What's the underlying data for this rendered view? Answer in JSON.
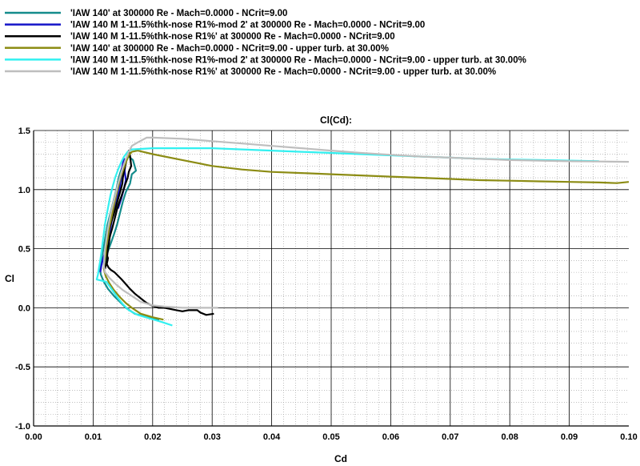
{
  "chart_data": {
    "type": "line",
    "title": "Cl(Cd):",
    "xlabel": "Cd",
    "ylabel": "Cl",
    "xlim": [
      0.0,
      0.1
    ],
    "ylim": [
      -1.0,
      1.5
    ],
    "xticks": [
      "0.00",
      "0.01",
      "0.02",
      "0.03",
      "0.04",
      "0.05",
      "0.06",
      "0.07",
      "0.08",
      "0.09",
      "0.10"
    ],
    "yticks": [
      "1.5",
      "1.0",
      "0.5",
      "0.0",
      "-0.5",
      "-1.0"
    ],
    "grid": true,
    "legend_position": "top-left",
    "series": [
      {
        "name": "'IAW 140' at 300000 Re - Mach=0.0000 - NCrit=9.00",
        "color": "#148c8c",
        "points": [
          [
            0.0211,
            -0.1
          ],
          [
            0.019,
            -0.08
          ],
          [
            0.017,
            -0.05
          ],
          [
            0.0155,
            0.0
          ],
          [
            0.0145,
            0.05
          ],
          [
            0.0135,
            0.1
          ],
          [
            0.0125,
            0.16
          ],
          [
            0.0118,
            0.22
          ],
          [
            0.0113,
            0.28
          ],
          [
            0.0111,
            0.34
          ],
          [
            0.0113,
            0.4
          ],
          [
            0.0116,
            0.46
          ],
          [
            0.0118,
            0.52
          ],
          [
            0.012,
            0.58
          ],
          [
            0.0122,
            0.64
          ],
          [
            0.0124,
            0.7
          ],
          [
            0.0127,
            0.76
          ],
          [
            0.013,
            0.82
          ],
          [
            0.0133,
            0.88
          ],
          [
            0.0136,
            0.94
          ],
          [
            0.0139,
            1.0
          ],
          [
            0.0141,
            1.05
          ],
          [
            0.0143,
            1.1
          ],
          [
            0.0146,
            1.15
          ],
          [
            0.015,
            1.2
          ],
          [
            0.0155,
            1.25
          ],
          [
            0.016,
            1.28
          ],
          [
            0.0167,
            1.25
          ],
          [
            0.0172,
            1.16
          ],
          [
            0.0165,
            1.13
          ],
          [
            0.0162,
            1.05
          ],
          [
            0.0155,
            0.98
          ],
          [
            0.015,
            0.9
          ],
          [
            0.0145,
            0.8
          ],
          [
            0.014,
            0.7
          ],
          [
            0.0135,
            0.62
          ],
          [
            0.013,
            0.55
          ],
          [
            0.0125,
            0.48
          ],
          [
            0.0121,
            0.42
          ],
          [
            0.0118,
            0.36
          ]
        ]
      },
      {
        "name": "'IAW 140 M 1-11.5%thk-nose R1%-mod 2' at 300000 Re - Mach=0.0000 - NCrit=9.00",
        "color": "#1414c8",
        "points": [
          [
            0.0112,
            0.3
          ],
          [
            0.0114,
            0.36
          ],
          [
            0.0117,
            0.42
          ],
          [
            0.0121,
            0.48
          ],
          [
            0.0124,
            0.55
          ],
          [
            0.0127,
            0.62
          ],
          [
            0.013,
            0.7
          ],
          [
            0.0133,
            0.78
          ],
          [
            0.0137,
            0.86
          ],
          [
            0.0141,
            0.94
          ],
          [
            0.0144,
            1.0
          ],
          [
            0.0146,
            1.06
          ],
          [
            0.0148,
            1.12
          ],
          [
            0.0148,
            1.17
          ],
          [
            0.015,
            1.22
          ],
          [
            0.0152,
            1.26
          ],
          [
            0.0155,
            1.24
          ],
          [
            0.0153,
            1.16
          ],
          [
            0.0155,
            1.08
          ],
          [
            0.0152,
            1.01
          ],
          [
            0.0147,
            0.92
          ],
          [
            0.0142,
            0.84
          ]
        ]
      },
      {
        "name": "'IAW 140 M 1-11.5%thk-nose R1%' at 300000 Re - Mach=0.0000 - NCrit=9.00",
        "color": "#000000",
        "points": [
          [
            0.0303,
            -0.05
          ],
          [
            0.029,
            -0.06
          ],
          [
            0.028,
            -0.04
          ],
          [
            0.0275,
            -0.02
          ],
          [
            0.026,
            -0.02
          ],
          [
            0.025,
            -0.03
          ],
          [
            0.024,
            -0.02
          ],
          [
            0.023,
            -0.01
          ],
          [
            0.022,
            0.0
          ],
          [
            0.021,
            0.0
          ],
          [
            0.0198,
            0.02
          ],
          [
            0.019,
            0.04
          ],
          [
            0.018,
            0.08
          ],
          [
            0.017,
            0.12
          ],
          [
            0.0162,
            0.16
          ],
          [
            0.0155,
            0.2
          ],
          [
            0.0148,
            0.24
          ],
          [
            0.0142,
            0.27
          ],
          [
            0.0136,
            0.3
          ],
          [
            0.013,
            0.32
          ],
          [
            0.0126,
            0.34
          ],
          [
            0.0123,
            0.37
          ],
          [
            0.0125,
            0.42
          ],
          [
            0.0122,
            0.46
          ],
          [
            0.0125,
            0.5
          ],
          [
            0.0122,
            0.55
          ],
          [
            0.0125,
            0.6
          ],
          [
            0.0127,
            0.66
          ],
          [
            0.013,
            0.72
          ],
          [
            0.0134,
            0.78
          ],
          [
            0.0138,
            0.85
          ],
          [
            0.0142,
            0.92
          ],
          [
            0.0146,
            0.99
          ],
          [
            0.0149,
            1.05
          ],
          [
            0.015,
            1.1
          ],
          [
            0.0152,
            1.16
          ],
          [
            0.0155,
            1.22
          ],
          [
            0.0158,
            1.3
          ],
          [
            0.016,
            1.33
          ],
          [
            0.0162,
            1.29
          ],
          [
            0.0164,
            1.2
          ],
          [
            0.016,
            1.15
          ],
          [
            0.0158,
            1.1
          ],
          [
            0.0153,
            1.03
          ],
          [
            0.0148,
            0.95
          ],
          [
            0.0143,
            0.88
          ],
          [
            0.014,
            0.83
          ],
          [
            0.0136,
            0.75
          ],
          [
            0.0132,
            0.67
          ],
          [
            0.0128,
            0.6
          ],
          [
            0.0126,
            0.52
          ],
          [
            0.0124,
            0.46
          ],
          [
            0.0123,
            0.4
          ],
          [
            0.012,
            0.33
          ]
        ]
      },
      {
        "name": "'IAW 140' at 300000 Re - Mach=0.0000 - NCrit=9.00 - upper turb. at 30.00%",
        "color": "#8c8c14",
        "points": [
          [
            0.0218,
            -0.1
          ],
          [
            0.02,
            -0.08
          ],
          [
            0.018,
            -0.05
          ],
          [
            0.0165,
            0.0
          ],
          [
            0.0155,
            0.04
          ],
          [
            0.0145,
            0.09
          ],
          [
            0.0135,
            0.15
          ],
          [
            0.0127,
            0.21
          ],
          [
            0.0121,
            0.27
          ],
          [
            0.0118,
            0.33
          ],
          [
            0.0119,
            0.39
          ],
          [
            0.0121,
            0.45
          ],
          [
            0.0122,
            0.51
          ],
          [
            0.0124,
            0.57
          ],
          [
            0.0126,
            0.63
          ],
          [
            0.0128,
            0.7
          ],
          [
            0.0131,
            0.77
          ],
          [
            0.0134,
            0.84
          ],
          [
            0.0137,
            0.91
          ],
          [
            0.014,
            0.98
          ],
          [
            0.0143,
            1.04
          ],
          [
            0.0146,
            1.1
          ],
          [
            0.015,
            1.16
          ],
          [
            0.0155,
            1.23
          ],
          [
            0.016,
            1.29
          ],
          [
            0.0165,
            1.32
          ],
          [
            0.0175,
            1.33
          ],
          [
            0.02,
            1.3
          ],
          [
            0.025,
            1.25
          ],
          [
            0.03,
            1.2
          ],
          [
            0.035,
            1.17
          ],
          [
            0.04,
            1.15
          ],
          [
            0.045,
            1.14
          ],
          [
            0.05,
            1.13
          ],
          [
            0.055,
            1.12
          ],
          [
            0.06,
            1.11
          ],
          [
            0.065,
            1.1
          ],
          [
            0.07,
            1.09
          ],
          [
            0.075,
            1.08
          ],
          [
            0.08,
            1.075
          ],
          [
            0.085,
            1.07
          ],
          [
            0.09,
            1.065
          ],
          [
            0.095,
            1.06
          ],
          [
            0.098,
            1.055
          ],
          [
            0.1,
            1.065
          ]
        ]
      },
      {
        "name": "'IAW 140 M 1-11.5%thk-nose R1%-mod 2' at 300000 Re - Mach=0.0000 - NCrit=9.00 - upper turb. at 30.00%",
        "color": "#32f0f0",
        "points": [
          [
            0.0233,
            -0.15
          ],
          [
            0.0215,
            -0.12
          ],
          [
            0.0195,
            -0.09
          ],
          [
            0.0175,
            -0.06
          ],
          [
            0.016,
            -0.02
          ],
          [
            0.015,
            0.03
          ],
          [
            0.0142,
            0.08
          ],
          [
            0.0135,
            0.13
          ],
          [
            0.0128,
            0.18
          ],
          [
            0.0122,
            0.22
          ],
          [
            0.0106,
            0.24
          ],
          [
            0.0108,
            0.28
          ],
          [
            0.011,
            0.34
          ],
          [
            0.0112,
            0.4
          ],
          [
            0.0114,
            0.47
          ],
          [
            0.0116,
            0.55
          ],
          [
            0.0118,
            0.63
          ],
          [
            0.012,
            0.71
          ],
          [
            0.0123,
            0.79
          ],
          [
            0.0126,
            0.87
          ],
          [
            0.0129,
            0.95
          ],
          [
            0.0133,
            1.03
          ],
          [
            0.0137,
            1.1
          ],
          [
            0.0142,
            1.17
          ],
          [
            0.0147,
            1.23
          ],
          [
            0.0152,
            1.28
          ],
          [
            0.0158,
            1.32
          ],
          [
            0.0165,
            1.34
          ],
          [
            0.02,
            1.35
          ],
          [
            0.025,
            1.35
          ],
          [
            0.03,
            1.35
          ],
          [
            0.035,
            1.34
          ],
          [
            0.04,
            1.33
          ],
          [
            0.045,
            1.32
          ],
          [
            0.05,
            1.31
          ],
          [
            0.055,
            1.3
          ],
          [
            0.06,
            1.29
          ],
          [
            0.065,
            1.28
          ],
          [
            0.07,
            1.27
          ],
          [
            0.075,
            1.26
          ],
          [
            0.08,
            1.255
          ],
          [
            0.085,
            1.25
          ],
          [
            0.09,
            1.245
          ],
          [
            0.095,
            1.24
          ]
        ]
      },
      {
        "name": "'IAW 140 M 1-11.5%thk-nose R1%' at 300000 Re - Mach=0.0000 - NCrit=9.00 - upper turb. at 30.00%",
        "color": "#bebebe",
        "points": [
          [
            0.031,
            0.0
          ],
          [
            0.028,
            0.0
          ],
          [
            0.025,
            0.0
          ],
          [
            0.022,
            0.01
          ],
          [
            0.02,
            0.02
          ],
          [
            0.018,
            0.05
          ],
          [
            0.0165,
            0.1
          ],
          [
            0.015,
            0.15
          ],
          [
            0.0138,
            0.2
          ],
          [
            0.0128,
            0.25
          ],
          [
            0.012,
            0.3
          ],
          [
            0.0118,
            0.36
          ],
          [
            0.0119,
            0.43
          ],
          [
            0.012,
            0.5
          ],
          [
            0.0122,
            0.57
          ],
          [
            0.0124,
            0.65
          ],
          [
            0.0127,
            0.73
          ],
          [
            0.013,
            0.81
          ],
          [
            0.0134,
            0.89
          ],
          [
            0.0138,
            0.97
          ],
          [
            0.0142,
            1.05
          ],
          [
            0.0146,
            1.12
          ],
          [
            0.015,
            1.19
          ],
          [
            0.0155,
            1.26
          ],
          [
            0.016,
            1.32
          ],
          [
            0.0165,
            1.37
          ],
          [
            0.0175,
            1.4
          ],
          [
            0.019,
            1.44
          ],
          [
            0.02,
            1.44
          ],
          [
            0.025,
            1.43
          ],
          [
            0.03,
            1.41
          ],
          [
            0.035,
            1.39
          ],
          [
            0.04,
            1.37
          ],
          [
            0.045,
            1.35
          ],
          [
            0.05,
            1.33
          ],
          [
            0.055,
            1.31
          ],
          [
            0.06,
            1.295
          ],
          [
            0.065,
            1.28
          ],
          [
            0.07,
            1.27
          ],
          [
            0.075,
            1.26
          ],
          [
            0.08,
            1.25
          ],
          [
            0.085,
            1.245
          ],
          [
            0.09,
            1.24
          ],
          [
            0.095,
            1.238
          ],
          [
            0.1,
            1.235
          ]
        ]
      }
    ]
  }
}
